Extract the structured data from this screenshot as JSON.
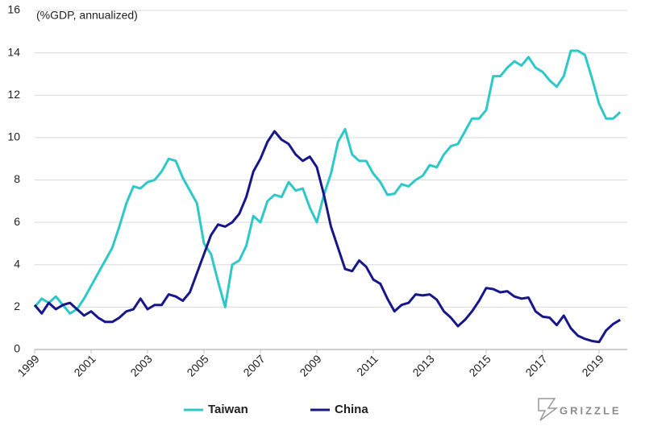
{
  "chart_data": {
    "type": "line",
    "annotation": "(%GDP, annualized)",
    "brand": "GRIZZLE",
    "x": [
      1999,
      1999.25,
      1999.5,
      1999.75,
      2000,
      2000.25,
      2000.5,
      2000.75,
      2001,
      2001.25,
      2001.5,
      2001.75,
      2002,
      2002.25,
      2002.5,
      2002.75,
      2003,
      2003.25,
      2003.5,
      2003.75,
      2004,
      2004.25,
      2004.5,
      2004.75,
      2005,
      2005.25,
      2005.5,
      2005.75,
      2006,
      2006.25,
      2006.5,
      2006.75,
      2007,
      2007.25,
      2007.5,
      2007.75,
      2008,
      2008.25,
      2008.5,
      2008.75,
      2009,
      2009.25,
      2009.5,
      2009.75,
      2010,
      2010.25,
      2010.5,
      2010.75,
      2011,
      2011.25,
      2011.5,
      2011.75,
      2012,
      2012.25,
      2012.5,
      2012.75,
      2013,
      2013.25,
      2013.5,
      2013.75,
      2014,
      2014.25,
      2014.5,
      2014.75,
      2015,
      2015.25,
      2015.5,
      2015.75,
      2016,
      2016.25,
      2016.5,
      2016.75,
      2017,
      2017.25,
      2017.5,
      2017.75,
      2018,
      2018.25,
      2018.5,
      2018.75,
      2019,
      2019.25,
      2019.5,
      2019.75
    ],
    "series": [
      {
        "name": "Taiwan",
        "color": "#2ec8c8",
        "values": [
          2.0,
          2.4,
          2.2,
          2.5,
          2.1,
          1.7,
          1.9,
          2.4,
          3.0,
          3.6,
          4.2,
          4.8,
          5.8,
          6.9,
          7.7,
          7.6,
          7.9,
          8.0,
          8.4,
          9.0,
          8.9,
          8.1,
          7.5,
          6.9,
          5.0,
          4.5,
          3.2,
          2.0,
          4.0,
          4.2,
          4.9,
          6.3,
          6.0,
          7.0,
          7.3,
          7.2,
          7.9,
          7.5,
          7.6,
          6.7,
          6.0,
          7.3,
          8.3,
          9.8,
          10.4,
          9.2,
          8.9,
          8.9,
          8.3,
          7.9,
          7.3,
          7.35,
          7.8,
          7.7,
          8.0,
          8.2,
          8.7,
          8.6,
          9.2,
          9.6,
          9.7,
          10.3,
          10.9,
          10.9,
          11.3,
          12.9,
          12.9,
          13.3,
          13.6,
          13.4,
          13.8,
          13.3,
          13.1,
          12.7,
          12.4,
          12.9,
          14.1,
          14.1,
          13.9,
          12.8,
          11.6,
          10.9,
          10.9,
          11.2
        ]
      },
      {
        "name": "China",
        "color": "#17168a",
        "values": [
          2.1,
          1.7,
          2.2,
          1.9,
          2.1,
          2.2,
          1.9,
          1.6,
          1.8,
          1.5,
          1.3,
          1.3,
          1.5,
          1.8,
          1.9,
          2.4,
          1.9,
          2.1,
          2.1,
          2.6,
          2.5,
          2.3,
          2.7,
          3.6,
          4.5,
          5.4,
          5.9,
          5.8,
          6.0,
          6.4,
          7.2,
          8.4,
          9.0,
          9.8,
          10.3,
          9.9,
          9.7,
          9.2,
          8.9,
          9.1,
          8.6,
          7.3,
          5.8,
          4.8,
          3.8,
          3.7,
          4.2,
          3.9,
          3.3,
          3.1,
          2.4,
          1.8,
          2.1,
          2.2,
          2.6,
          2.55,
          2.6,
          2.35,
          1.8,
          1.5,
          1.1,
          1.4,
          1.8,
          2.3,
          2.9,
          2.85,
          2.7,
          2.75,
          2.5,
          2.4,
          2.45,
          1.8,
          1.55,
          1.5,
          1.15,
          1.6,
          1.0,
          0.65,
          0.5,
          0.4,
          0.35,
          0.9,
          1.2,
          1.4
        ]
      }
    ],
    "xlim": [
      1999,
      2020
    ],
    "xticks": [
      1999,
      2001,
      2003,
      2005,
      2007,
      2009,
      2011,
      2013,
      2015,
      2017,
      2019
    ],
    "ylim": [
      0,
      16
    ],
    "yticks": [
      0,
      2,
      4,
      6,
      8,
      10,
      12,
      14,
      16
    ],
    "grid": true
  }
}
